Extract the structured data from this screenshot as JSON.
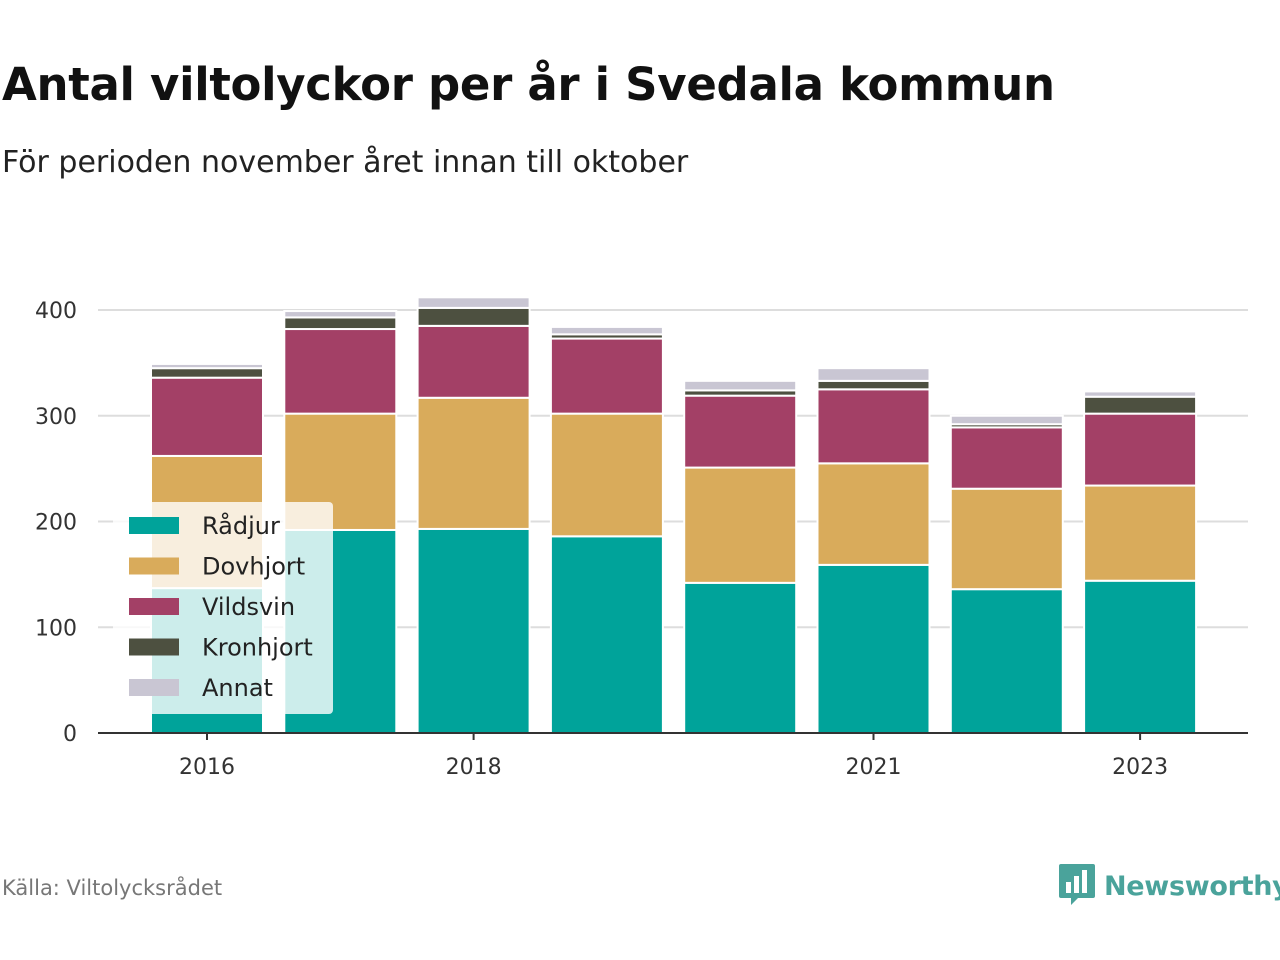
{
  "title": "Antal viltolyckor per år i Svedala kommun",
  "subtitle": "För perioden november året innan till oktober",
  "source": "Källa: Viltolycksrådet",
  "brand": {
    "name": "Newsworthy",
    "logo_icon": "bar-chart-speech-bubble-icon",
    "color": "#4aa39b"
  },
  "chart_data": {
    "type": "bar",
    "stacked": true,
    "categories": [
      "2016",
      "2017",
      "2018",
      "2019",
      "2020",
      "2021",
      "2022",
      "2023"
    ],
    "x_tick_labels": [
      "2016",
      "",
      "2018",
      "",
      "",
      "2021",
      "",
      "2023"
    ],
    "ylim": [
      0,
      420
    ],
    "y_ticks": [
      0,
      100,
      200,
      300,
      400
    ],
    "grid": true,
    "legend_position": "bottom-left",
    "series": [
      {
        "name": "Rådjur",
        "color": "#00a39a",
        "values": [
          137,
          192,
          193,
          186,
          142,
          159,
          136,
          144
        ]
      },
      {
        "name": "Dovhjort",
        "color": "#d9ab5b",
        "values": [
          125,
          110,
          124,
          116,
          109,
          96,
          95,
          90
        ]
      },
      {
        "name": "Vildsvin",
        "color": "#a34066",
        "values": [
          74,
          80,
          68,
          71,
          68,
          70,
          58,
          68
        ]
      },
      {
        "name": "Kronhjort",
        "color": "#4d5040",
        "values": [
          9,
          11,
          17,
          4,
          5,
          8,
          3,
          16
        ]
      },
      {
        "name": "Annat",
        "color": "#c9c6d3",
        "values": [
          4,
          6,
          10,
          7,
          9,
          12,
          8,
          5
        ]
      }
    ]
  }
}
